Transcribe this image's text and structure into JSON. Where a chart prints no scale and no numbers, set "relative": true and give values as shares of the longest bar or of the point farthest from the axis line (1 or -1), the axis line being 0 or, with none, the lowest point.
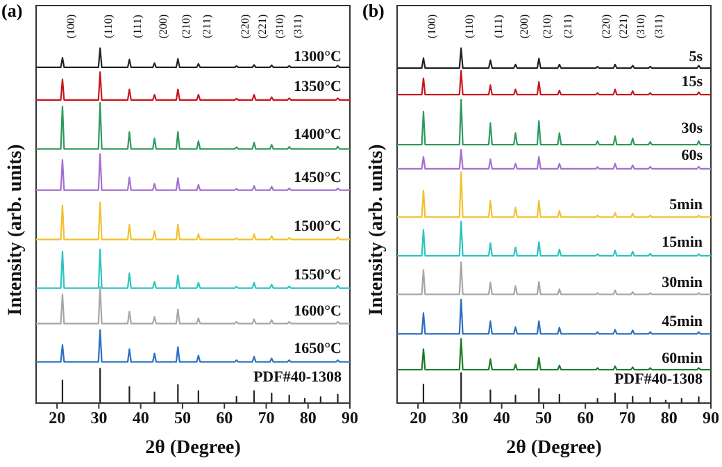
{
  "chart_data": [
    {
      "type": "line",
      "title": "(a)",
      "xlabel": "2θ (Degree)",
      "ylabel": "Intensity (arb. units)",
      "relative": true,
      "xlim": [
        15,
        90
      ],
      "xticks": [
        20,
        30,
        40,
        50,
        60,
        70,
        80,
        90
      ],
      "x": [
        15,
        20.9,
        21.3,
        21.7,
        29.9,
        30.3,
        30.7,
        36.9,
        37.3,
        37.7,
        42.9,
        43.3,
        43.7,
        48.5,
        48.9,
        49.3,
        53.4,
        53.8,
        54.2,
        62.5,
        62.9,
        63.3,
        66.7,
        67.1,
        67.5,
        70.9,
        71.3,
        71.7,
        75.1,
        75.5,
        75.9,
        86.7,
        87.1,
        87.5,
        90
      ],
      "series": [
        {
          "name": "1300°C",
          "color": "#222222",
          "values": [
            0.946,
            0.946,
            0.973,
            0.946,
            0.946,
            1,
            0.946,
            0.946,
            0.968,
            0.946,
            0.946,
            0.958,
            0.946,
            0.946,
            0.97,
            0.946,
            0.946,
            0.956,
            0.946,
            0.946,
            0.95,
            0.946,
            0.946,
            0.953,
            0.946,
            0.946,
            0.952,
            0.946,
            0.946,
            0.95,
            0.946,
            0.946,
            0.951,
            0.946,
            0.946
          ]
        },
        {
          "name": "1350°C",
          "color": "#c8161d",
          "values": [
            0.854,
            0.854,
            0.912,
            0.854,
            0.854,
            0.933,
            0.854,
            0.854,
            0.884,
            0.854,
            0.854,
            0.869,
            0.854,
            0.854,
            0.884,
            0.854,
            0.854,
            0.869,
            0.854,
            0.854,
            0.858,
            0.854,
            0.854,
            0.869,
            0.854,
            0.854,
            0.862,
            0.854,
            0.854,
            0.859,
            0.854,
            0.854,
            0.859,
            0.854,
            0.854
          ]
        },
        {
          "name": "1400°C",
          "color": "#2e9a5c",
          "values": [
            0.716,
            0.716,
            0.836,
            0.716,
            0.716,
            0.846,
            0.716,
            0.716,
            0.764,
            0.716,
            0.716,
            0.746,
            0.716,
            0.716,
            0.764,
            0.716,
            0.716,
            0.738,
            0.716,
            0.716,
            0.721,
            0.716,
            0.716,
            0.734,
            0.716,
            0.716,
            0.728,
            0.716,
            0.716,
            0.722,
            0.716,
            0.716,
            0.723,
            0.716,
            0.716
          ]
        },
        {
          "name": "1450°C",
          "color": "#a46ed0",
          "values": [
            0.6,
            0.6,
            0.685,
            0.6,
            0.6,
            0.702,
            0.6,
            0.6,
            0.636,
            0.6,
            0.6,
            0.618,
            0.6,
            0.6,
            0.634,
            0.6,
            0.6,
            0.615,
            0.6,
            0.6,
            0.604,
            0.6,
            0.6,
            0.612,
            0.6,
            0.6,
            0.61,
            0.6,
            0.6,
            0.605,
            0.6,
            0.6,
            0.605,
            0.6,
            0.6
          ]
        },
        {
          "name": "1500°C",
          "color": "#f2c12e",
          "values": [
            0.461,
            0.461,
            0.557,
            0.461,
            0.461,
            0.566,
            0.461,
            0.461,
            0.503,
            0.461,
            0.461,
            0.485,
            0.461,
            0.461,
            0.503,
            0.461,
            0.461,
            0.476,
            0.461,
            0.461,
            0.465,
            0.461,
            0.461,
            0.476,
            0.461,
            0.461,
            0.471,
            0.461,
            0.461,
            0.466,
            0.461,
            0.461,
            0.467,
            0.461,
            0.461
          ]
        },
        {
          "name": "1550°C",
          "color": "#2cc4c0",
          "values": [
            0.324,
            0.324,
            0.427,
            0.324,
            0.324,
            0.433,
            0.324,
            0.324,
            0.366,
            0.324,
            0.324,
            0.342,
            0.324,
            0.324,
            0.36,
            0.324,
            0.324,
            0.339,
            0.324,
            0.324,
            0.328,
            0.324,
            0.324,
            0.339,
            0.324,
            0.324,
            0.334,
            0.324,
            0.324,
            0.329,
            0.324,
            0.324,
            0.331,
            0.324,
            0.324
          ]
        },
        {
          "name": "1600°C",
          "color": "#a6a6a6",
          "values": [
            0.224,
            0.224,
            0.306,
            0.224,
            0.224,
            0.327,
            0.224,
            0.224,
            0.258,
            0.224,
            0.224,
            0.243,
            0.224,
            0.224,
            0.264,
            0.224,
            0.224,
            0.239,
            0.224,
            0.224,
            0.229,
            0.224,
            0.224,
            0.236,
            0.224,
            0.224,
            0.234,
            0.224,
            0.224,
            0.229,
            0.224,
            0.224,
            0.229,
            0.224,
            0.224
          ]
        },
        {
          "name": "1650°C",
          "color": "#2a6fc0",
          "values": [
            0.116,
            0.116,
            0.164,
            0.116,
            0.116,
            0.206,
            0.116,
            0.116,
            0.152,
            0.116,
            0.116,
            0.14,
            0.116,
            0.116,
            0.158,
            0.116,
            0.116,
            0.134,
            0.116,
            0.116,
            0.121,
            0.116,
            0.116,
            0.131,
            0.116,
            0.116,
            0.126,
            0.116,
            0.116,
            0.121,
            0.116,
            0.116,
            0.121,
            0.116,
            0.116
          ]
        },
        {
          "name": "PDF#40-1308",
          "color": "#222222",
          "x": [
            15,
            21.3,
            21.3,
            21.3,
            30.3,
            30.3,
            30.3,
            37.3,
            37.3,
            37.3,
            43.3,
            43.3,
            43.3,
            48.9,
            48.9,
            48.9,
            53.8,
            53.8,
            53.8,
            62.9,
            62.9,
            62.9,
            67.1,
            67.1,
            67.1,
            71.3,
            71.3,
            71.3,
            75.5,
            75.5,
            75.5,
            79.2,
            79.2,
            79.2,
            83.0,
            83.0,
            83.0,
            87.1,
            87.1,
            87.1,
            90
          ],
          "values": [
            0,
            0,
            0.064,
            0,
            0,
            0.097,
            0,
            0,
            0.046,
            0,
            0,
            0.03,
            0,
            0,
            0.051,
            0,
            0,
            0.034,
            0,
            0,
            0.018,
            0,
            0,
            0.034,
            0,
            0,
            0.027,
            0,
            0,
            0.022,
            0,
            0,
            0.012,
            0,
            0,
            0.017,
            0,
            0,
            0.024,
            0,
            0
          ]
        }
      ],
      "annotations": [
        "(100)",
        "(110)",
        "(111)",
        "(200)",
        "(210)",
        "(211)",
        "(220)",
        "(221)",
        "(310)",
        "(311)"
      ]
    },
    {
      "type": "line",
      "title": "(b)",
      "xlabel": "2θ (Degree)",
      "ylabel": "Intensity (arb. units)",
      "relative": true,
      "xlim": [
        15,
        90
      ],
      "xticks": [
        20,
        30,
        40,
        50,
        60,
        70,
        80,
        90
      ],
      "x": [
        15,
        20.9,
        21.3,
        21.7,
        29.9,
        30.3,
        30.7,
        36.9,
        37.3,
        37.7,
        42.9,
        43.3,
        43.7,
        48.5,
        48.9,
        49.3,
        53.4,
        53.8,
        54.2,
        62.5,
        62.9,
        63.3,
        66.7,
        67.1,
        67.5,
        70.9,
        71.3,
        71.7,
        75.1,
        75.5,
        75.9,
        86.7,
        87.1,
        87.5,
        90
      ],
      "series": [
        {
          "name": "5s",
          "color": "#222222",
          "values": [
            0.944,
            0.944,
            0.972,
            0.944,
            0.944,
            1,
            0.944,
            0.944,
            0.966,
            0.944,
            0.944,
            0.954,
            0.944,
            0.944,
            0.971,
            0.944,
            0.944,
            0.954,
            0.944,
            0.944,
            0.948,
            0.944,
            0.944,
            0.954,
            0.944,
            0.944,
            0.951,
            0.944,
            0.944,
            0.948,
            0.944,
            0.944,
            0.951,
            0.944,
            0.944
          ]
        },
        {
          "name": "15s",
          "color": "#c8161d",
          "values": [
            0.869,
            0.869,
            0.915,
            0.869,
            0.869,
            0.936,
            0.869,
            0.869,
            0.896,
            0.869,
            0.869,
            0.884,
            0.869,
            0.869,
            0.905,
            0.869,
            0.869,
            0.881,
            0.869,
            0.869,
            0.874,
            0.869,
            0.869,
            0.884,
            0.869,
            0.869,
            0.879,
            0.869,
            0.869,
            0.874,
            0.869,
            0.869,
            0.876,
            0.869,
            0.869
          ]
        },
        {
          "name": "30s",
          "color": "#2e9a5c",
          "values": [
            0.728,
            0.728,
            0.821,
            0.728,
            0.728,
            0.855,
            0.728,
            0.728,
            0.789,
            0.728,
            0.728,
            0.761,
            0.728,
            0.728,
            0.795,
            0.728,
            0.728,
            0.761,
            0.728,
            0.728,
            0.738,
            0.728,
            0.728,
            0.752,
            0.728,
            0.728,
            0.746,
            0.728,
            0.728,
            0.736,
            0.728,
            0.728,
            0.738,
            0.728,
            0.728
          ]
        },
        {
          "name": "60s",
          "color": "#a46ed0",
          "values": [
            0.66,
            0.66,
            0.694,
            0.66,
            0.66,
            0.714,
            0.66,
            0.66,
            0.687,
            0.66,
            0.66,
            0.675,
            0.66,
            0.66,
            0.694,
            0.66,
            0.66,
            0.675,
            0.66,
            0.66,
            0.665,
            0.66,
            0.66,
            0.675,
            0.66,
            0.66,
            0.67,
            0.66,
            0.66,
            0.666,
            0.66,
            0.66,
            0.666,
            0.66,
            0.66
          ]
        },
        {
          "name": "5min",
          "color": "#f2c12e",
          "values": [
            0.524,
            0.524,
            0.599,
            0.524,
            0.524,
            0.651,
            0.524,
            0.524,
            0.57,
            0.524,
            0.524,
            0.551,
            0.524,
            0.524,
            0.57,
            0.524,
            0.524,
            0.542,
            0.524,
            0.524,
            0.529,
            0.524,
            0.524,
            0.536,
            0.524,
            0.524,
            0.534,
            0.524,
            0.524,
            0.529,
            0.524,
            0.524,
            0.529,
            0.524,
            0.524
          ]
        },
        {
          "name": "15min",
          "color": "#2cc4c0",
          "values": [
            0.415,
            0.415,
            0.488,
            0.415,
            0.415,
            0.512,
            0.415,
            0.415,
            0.451,
            0.415,
            0.415,
            0.439,
            0.415,
            0.415,
            0.454,
            0.415,
            0.415,
            0.433,
            0.415,
            0.415,
            0.42,
            0.415,
            0.415,
            0.43,
            0.415,
            0.415,
            0.427,
            0.415,
            0.415,
            0.421,
            0.415,
            0.415,
            0.42,
            0.415,
            0.415
          ]
        },
        {
          "name": "30min",
          "color": "#a6a6a6",
          "values": [
            0.306,
            0.306,
            0.375,
            0.306,
            0.306,
            0.397,
            0.306,
            0.306,
            0.34,
            0.306,
            0.306,
            0.33,
            0.306,
            0.306,
            0.342,
            0.306,
            0.306,
            0.321,
            0.306,
            0.306,
            0.31,
            0.306,
            0.306,
            0.318,
            0.306,
            0.306,
            0.313,
            0.306,
            0.306,
            0.31,
            0.306,
            0.306,
            0.31,
            0.306,
            0.306
          ]
        },
        {
          "name": "45min",
          "color": "#2a6fc0",
          "values": [
            0.195,
            0.195,
            0.254,
            0.195,
            0.195,
            0.292,
            0.195,
            0.195,
            0.231,
            0.195,
            0.195,
            0.214,
            0.195,
            0.195,
            0.231,
            0.195,
            0.195,
            0.213,
            0.195,
            0.195,
            0.2,
            0.195,
            0.195,
            0.207,
            0.195,
            0.195,
            0.205,
            0.195,
            0.195,
            0.2,
            0.195,
            0.195,
            0.2,
            0.195,
            0.195
          ]
        },
        {
          "name": "60min",
          "color": "#1e7a2a",
          "values": [
            0.094,
            0.094,
            0.152,
            0.094,
            0.094,
            0.181,
            0.094,
            0.094,
            0.124,
            0.094,
            0.094,
            0.109,
            0.094,
            0.094,
            0.128,
            0.094,
            0.094,
            0.106,
            0.094,
            0.094,
            0.099,
            0.094,
            0.094,
            0.104,
            0.094,
            0.094,
            0.101,
            0.094,
            0.094,
            0.099,
            0.094,
            0.094,
            0.099,
            0.094,
            0.094
          ]
        },
        {
          "name": "PDF#40-1308",
          "color": "#222222",
          "x": [
            15,
            21.3,
            21.3,
            21.3,
            30.3,
            30.3,
            30.3,
            37.3,
            37.3,
            37.3,
            43.3,
            43.3,
            43.3,
            48.9,
            48.9,
            48.9,
            53.8,
            53.8,
            53.8,
            62.9,
            62.9,
            62.9,
            67.1,
            67.1,
            67.1,
            71.3,
            71.3,
            71.3,
            75.5,
            75.5,
            75.5,
            79.2,
            79.2,
            79.2,
            83.0,
            83.0,
            83.0,
            87.1,
            87.1,
            87.1,
            90
          ],
          "values": [
            0,
            0,
            0.052,
            0,
            0,
            0.085,
            0,
            0,
            0.036,
            0,
            0,
            0.022,
            0,
            0,
            0.04,
            0,
            0,
            0.024,
            0,
            0,
            0.012,
            0,
            0,
            0.027,
            0,
            0,
            0.018,
            0,
            0,
            0.015,
            0,
            0,
            0.007,
            0,
            0,
            0.012,
            0,
            0,
            0.017,
            0,
            0
          ]
        }
      ],
      "annotations": [
        "(100)",
        "(110)",
        "(111)",
        "(200)",
        "(210)",
        "(211)",
        "(220)",
        "(221)",
        "(310)",
        "(311)"
      ]
    }
  ]
}
